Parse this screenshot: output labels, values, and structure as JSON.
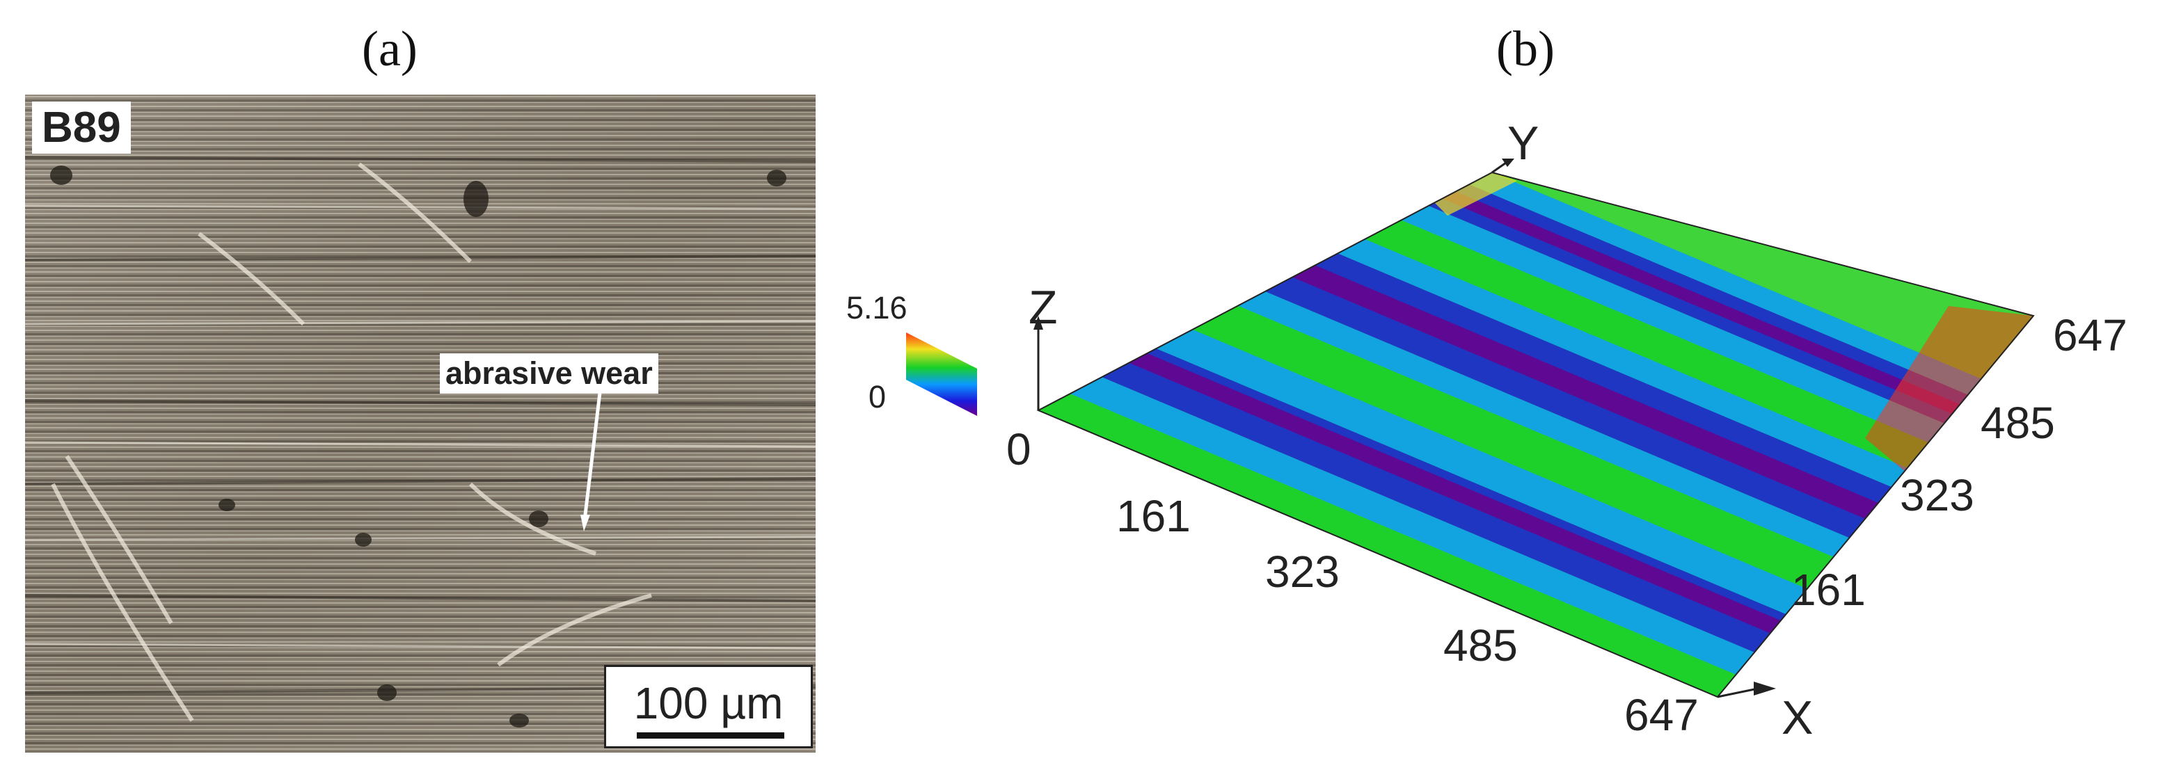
{
  "panels": {
    "a": {
      "label": "(a)",
      "sample": "B89",
      "annotation": "abrasive wear",
      "scalebar": "100 µm",
      "icon": "micrograph-image"
    },
    "b": {
      "label": "(b)",
      "legend": {
        "max": "5.16",
        "min": "0",
        "colormap": [
          "#6a008c",
          "#1a1adc",
          "#0a9aff",
          "#18d028",
          "#f0e020",
          "#ff3810"
        ]
      },
      "axes": {
        "z_label": "Z",
        "y_label": "Y",
        "x_label": "X",
        "origin": "0",
        "x_ticks": [
          "161",
          "323",
          "485",
          "647"
        ],
        "y_ticks": [
          "161",
          "323",
          "485",
          "647"
        ]
      },
      "icon": "surface-topography-3d"
    }
  }
}
